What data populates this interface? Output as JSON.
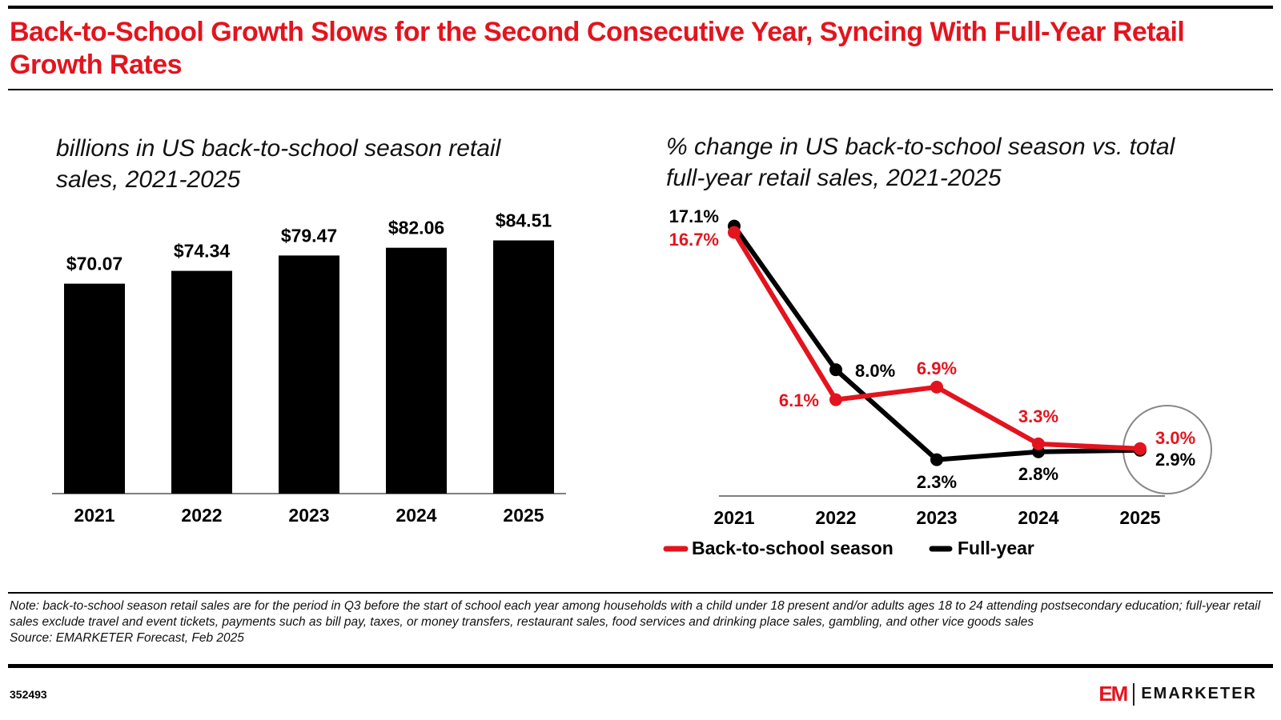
{
  "title": "Back-to-School Growth Slows for the Second Consecutive Year, Syncing With Full-Year Retail Growth Rates",
  "chart_data": [
    {
      "type": "bar",
      "title": "billions in US back-to-school season retail sales, 2021-2025",
      "categories": [
        "2021",
        "2022",
        "2023",
        "2024",
        "2025"
      ],
      "values": [
        70.07,
        74.34,
        79.47,
        82.06,
        84.51
      ],
      "labels": [
        "$70.07",
        "$74.34",
        "$79.47",
        "$82.06",
        "$84.51"
      ],
      "color": "#000000",
      "ylim": [
        0,
        90
      ],
      "grid": false
    },
    {
      "type": "line",
      "title": "% change in US back-to-school season vs. total full-year retail sales, 2021-2025",
      "categories": [
        "2021",
        "2022",
        "2023",
        "2024",
        "2025"
      ],
      "series": [
        {
          "name": "Back-to-school season",
          "values": [
            16.7,
            6.1,
            6.9,
            3.3,
            3.0
          ],
          "labels": [
            "16.7%",
            "6.1%",
            "6.9%",
            "3.3%",
            "3.0%"
          ],
          "color": "#e3141e"
        },
        {
          "name": "Full-year",
          "values": [
            17.1,
            8.0,
            2.3,
            2.8,
            2.9
          ],
          "labels": [
            "17.1%",
            "8.0%",
            "2.3%",
            "2.8%",
            "2.9%"
          ],
          "color": "#000000"
        }
      ],
      "ylim": [
        0,
        18
      ],
      "legend": "bottom",
      "grid": false
    }
  ],
  "note": "Note: back-to-school season retail sales are for the period in Q3 before the start of school each year among households with a child under 18 present and/or adults ages 18 to 24 attending postsecondary education; full-year retail sales exclude travel and event tickets, payments such as bill pay, taxes, or money transfers, restaurant sales, food services and drinking place sales, gambling, and other vice goods sales",
  "source": "Source: EMARKETER Forecast, Feb 2025",
  "chart_id": "352493",
  "brand": {
    "mark": "EM",
    "name": "EMARKETER",
    "accent": "#e3141e"
  }
}
